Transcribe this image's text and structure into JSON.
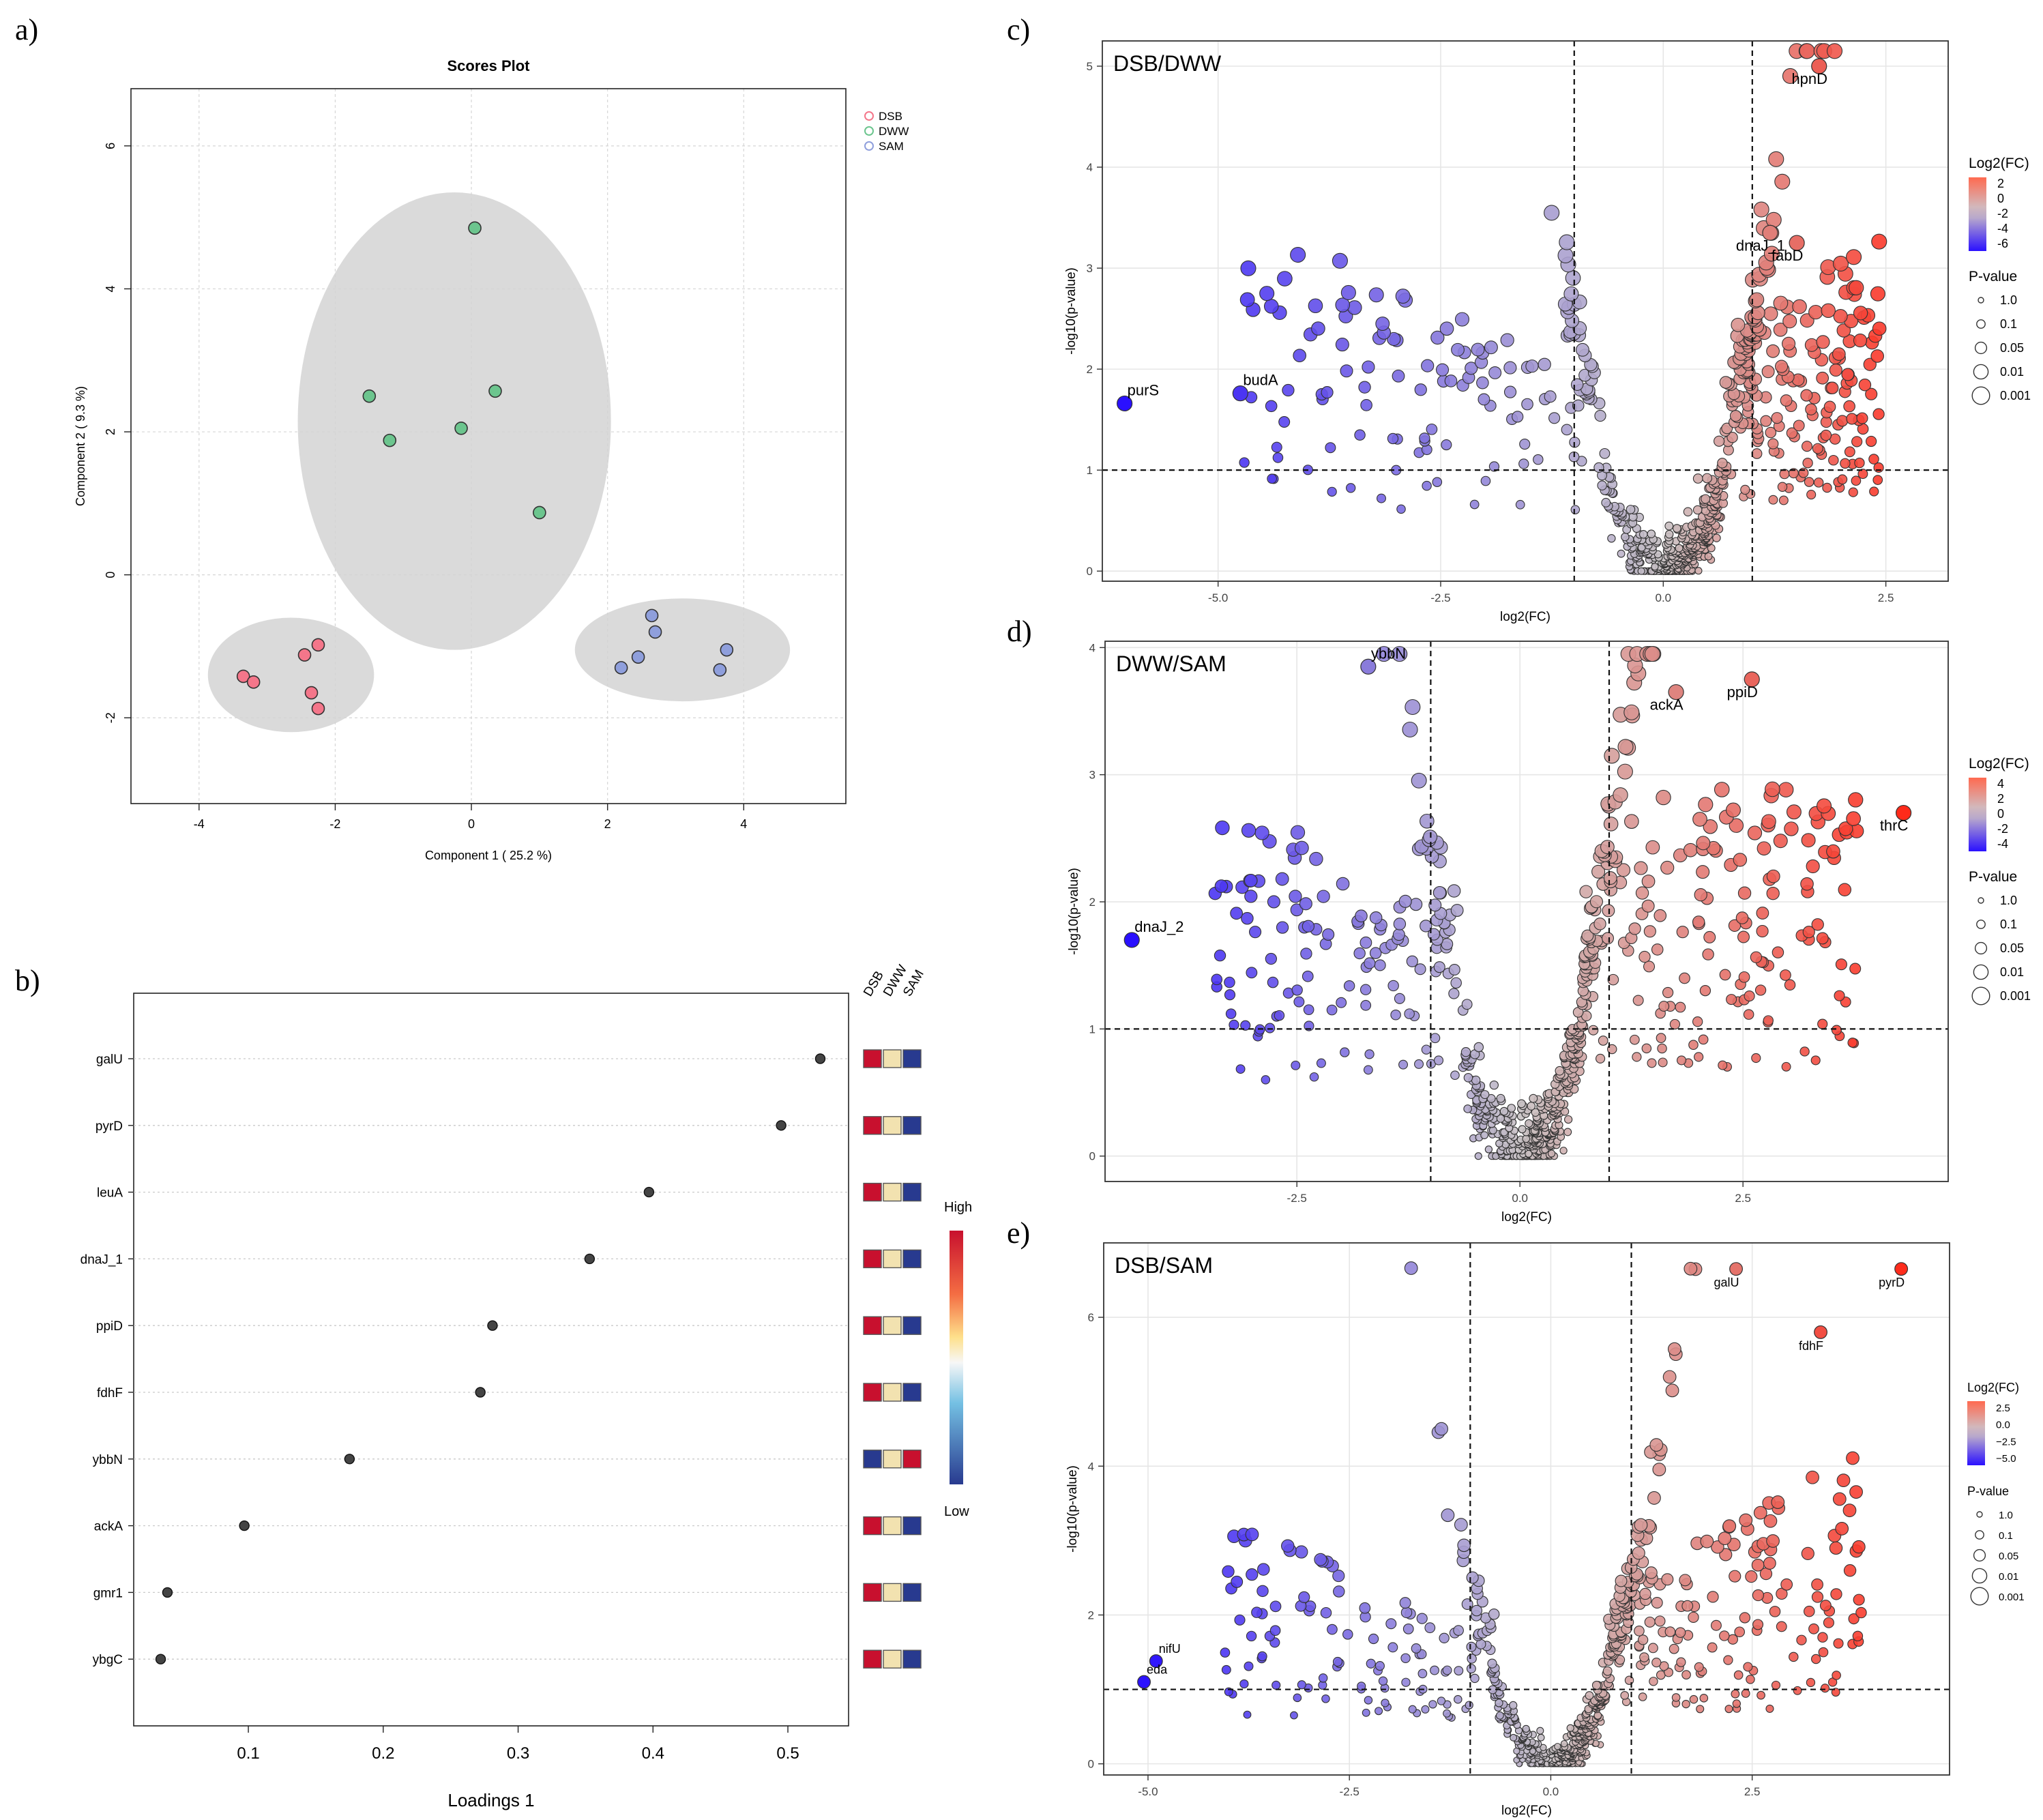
{
  "figure": {
    "panel_labels": [
      "a)",
      "b)",
      "c)",
      "d)",
      "e)"
    ]
  },
  "chart_data": [
    {
      "panel": "a)",
      "type": "scatter",
      "title": "Scores Plot",
      "xlabel": "Component 1 ( 25.2 %)",
      "ylabel": "Component 2 ( 9.3 %)",
      "xlim": [
        -5,
        5.5
      ],
      "ylim": [
        -3.2,
        6.8
      ],
      "xticks": [
        -4,
        -2,
        0,
        2,
        4
      ],
      "yticks": [
        -2,
        0,
        2,
        4,
        6
      ],
      "grid": true,
      "legend_position": "top-right",
      "series": [
        {
          "name": "DSB",
          "color": "#f4768a",
          "points": [
            [
              -3.35,
              -1.42
            ],
            [
              -3.2,
              -1.5
            ],
            [
              -2.45,
              -1.12
            ],
            [
              -2.25,
              -0.98
            ],
            [
              -2.35,
              -1.65
            ],
            [
              -2.25,
              -1.87
            ]
          ]
        },
        {
          "name": "DWW",
          "color": "#6cc58e",
          "points": [
            [
              0.05,
              4.85
            ],
            [
              -1.5,
              2.5
            ],
            [
              0.35,
              2.57
            ],
            [
              -1.2,
              1.88
            ],
            [
              -0.15,
              2.05
            ],
            [
              1.0,
              0.87
            ]
          ]
        },
        {
          "name": "SAM",
          "color": "#8f9fdc",
          "points": [
            [
              2.65,
              -0.57
            ],
            [
              2.7,
              -0.8
            ],
            [
              2.45,
              -1.15
            ],
            [
              2.2,
              -1.3
            ],
            [
              3.75,
              -1.05
            ],
            [
              3.65,
              -1.33
            ]
          ]
        }
      ],
      "ellipses": [
        {
          "group": "DSB",
          "cx": -2.65,
          "cy": -1.4,
          "rx": 1.22,
          "ry": 0.8
        },
        {
          "group": "DWW",
          "cx": -0.25,
          "cy": 2.15,
          "rx": 2.3,
          "ry": 3.2
        },
        {
          "group": "SAM",
          "cx": 3.1,
          "cy": -1.05,
          "rx": 1.58,
          "ry": 0.72
        }
      ]
    },
    {
      "panel": "b)",
      "type": "dot",
      "xlabel": "Loadings 1",
      "xlim": [
        0.015,
        0.545
      ],
      "xticks": [
        0.1,
        0.2,
        0.3,
        0.4,
        0.5
      ],
      "groups": [
        "DSB",
        "DWW",
        "SAM"
      ],
      "legend_high": "High",
      "legend_low": "Low",
      "items": [
        {
          "label": "galU",
          "value": 0.524,
          "boxes": [
            "high",
            "mid",
            "low"
          ]
        },
        {
          "label": "pyrD",
          "value": 0.495,
          "boxes": [
            "high",
            "mid",
            "low"
          ]
        },
        {
          "label": "leuA",
          "value": 0.397,
          "boxes": [
            "high",
            "mid",
            "low"
          ]
        },
        {
          "label": "dnaJ_1",
          "value": 0.353,
          "boxes": [
            "high",
            "mid",
            "low"
          ]
        },
        {
          "label": "ppiD",
          "value": 0.281,
          "boxes": [
            "high",
            "mid",
            "low"
          ]
        },
        {
          "label": "fdhF",
          "value": 0.272,
          "boxes": [
            "high",
            "mid",
            "low"
          ]
        },
        {
          "label": "ybbN",
          "value": 0.175,
          "boxes": [
            "low",
            "mid",
            "high"
          ]
        },
        {
          "label": "ackA",
          "value": 0.097,
          "boxes": [
            "high",
            "mid",
            "low"
          ]
        },
        {
          "label": "gmr1",
          "value": 0.04,
          "boxes": [
            "high",
            "mid",
            "low"
          ]
        },
        {
          "label": "ybgC",
          "value": 0.035,
          "boxes": [
            "high",
            "mid",
            "low"
          ]
        }
      ],
      "colors": {
        "high": "#c8102e",
        "mid": "#f2e2b0",
        "low": "#283a8f"
      }
    },
    {
      "panel": "c)",
      "type": "scatter",
      "subtype": "volcano",
      "title": "DSB/DWW",
      "xlabel": "log2(FC)",
      "ylabel": "-log10(p-value)",
      "xlim": [
        -6.3,
        3.2
      ],
      "ylim": [
        -0.1,
        5.25
      ],
      "xticks": [
        -5.0,
        -2.5,
        0.0,
        2.5
      ],
      "xtick_labels": [
        "-5.0",
        "-2.5",
        "0.0",
        "2.5"
      ],
      "yticks": [
        0,
        1,
        2,
        3,
        4,
        5
      ],
      "vlines": [
        -1,
        1
      ],
      "hline": 1,
      "fc_range": [
        -6,
        2.7
      ],
      "labelled_points": [
        {
          "label": "hpnD",
          "x": 1.75,
          "y": 5.0
        },
        {
          "label": "dnaJ_1",
          "x": 1.2,
          "y": 3.35
        },
        {
          "label": "fabD",
          "x": 1.5,
          "y": 3.25
        },
        {
          "label": "purS",
          "x": -6.05,
          "y": 1.66
        },
        {
          "label": "budA",
          "x": -4.75,
          "y": 1.76
        }
      ],
      "legend": {
        "color_title": "Log2(FC)",
        "color_ticks": [
          "2",
          "0",
          "-2",
          "-4",
          "-6"
        ],
        "size_title": "P-value",
        "size_labels": [
          "1.0",
          "0.1",
          "0.05",
          "0.01",
          "0.001"
        ]
      }
    },
    {
      "panel": "d)",
      "type": "scatter",
      "subtype": "volcano",
      "title": "DWW/SAM",
      "xlabel": "log2(FC)",
      "ylabel": "-log10(p-value)",
      "xlim": [
        -4.65,
        4.8
      ],
      "ylim": [
        -0.2,
        4.05
      ],
      "xticks": [
        -2.5,
        0.0,
        2.5
      ],
      "xtick_labels": [
        "-2.5",
        "0.0",
        "2.5"
      ],
      "yticks": [
        0,
        1,
        2,
        3,
        4
      ],
      "vlines": [
        -1,
        1
      ],
      "hline": 1,
      "fc_range": [
        -4.3,
        4.3
      ],
      "labelled_points": [
        {
          "label": "ybbN",
          "x": -1.7,
          "y": 3.85
        },
        {
          "label": "ackA",
          "x": 1.75,
          "y": 3.65
        },
        {
          "label": "ppiD",
          "x": 2.6,
          "y": 3.75
        },
        {
          "label": "thrC",
          "x": 4.3,
          "y": 2.7
        },
        {
          "label": "dnaJ_2",
          "x": -4.35,
          "y": 1.7
        }
      ],
      "legend": {
        "color_title": "Log2(FC)",
        "color_ticks": [
          "4",
          "2",
          "0",
          "-2",
          "-4"
        ],
        "size_title": "P-value",
        "size_labels": [
          "1.0",
          "0.1",
          "0.05",
          "0.01",
          "0.001"
        ]
      }
    },
    {
      "panel": "e)",
      "type": "scatter",
      "subtype": "volcano",
      "title": "DSB/SAM",
      "xlabel": "log2(FC)",
      "ylabel": "-log10(p-value)",
      "xlim": [
        -5.55,
        4.95
      ],
      "ylim": [
        -0.15,
        7.0
      ],
      "xticks": [
        -5.0,
        -2.5,
        0.0,
        2.5
      ],
      "xtick_labels": [
        "-5.0",
        "-2.5",
        "0.0",
        "2.5"
      ],
      "yticks": [
        0,
        2,
        4,
        6
      ],
      "vlines": [
        -1,
        1
      ],
      "hline": 1,
      "fc_range": [
        -5.1,
        4.4
      ],
      "labelled_points": [
        {
          "label": "galU",
          "x": 2.3,
          "y": 6.65
        },
        {
          "label": "pyrD",
          "x": 4.35,
          "y": 6.65
        },
        {
          "label": "fdhF",
          "x": 3.35,
          "y": 5.8
        },
        {
          "label": "nifU",
          "x": -4.9,
          "y": 1.38
        },
        {
          "label": "eda",
          "x": -5.05,
          "y": 1.1
        }
      ],
      "legend": {
        "color_title": "Log2(FC)",
        "color_ticks": [
          "2.5",
          "0.0",
          "−2.5",
          "−5.0"
        ],
        "size_title": "P-value",
        "size_labels": [
          "1.0",
          "0.1",
          "0.05",
          "0.01",
          "0.001"
        ]
      }
    }
  ]
}
